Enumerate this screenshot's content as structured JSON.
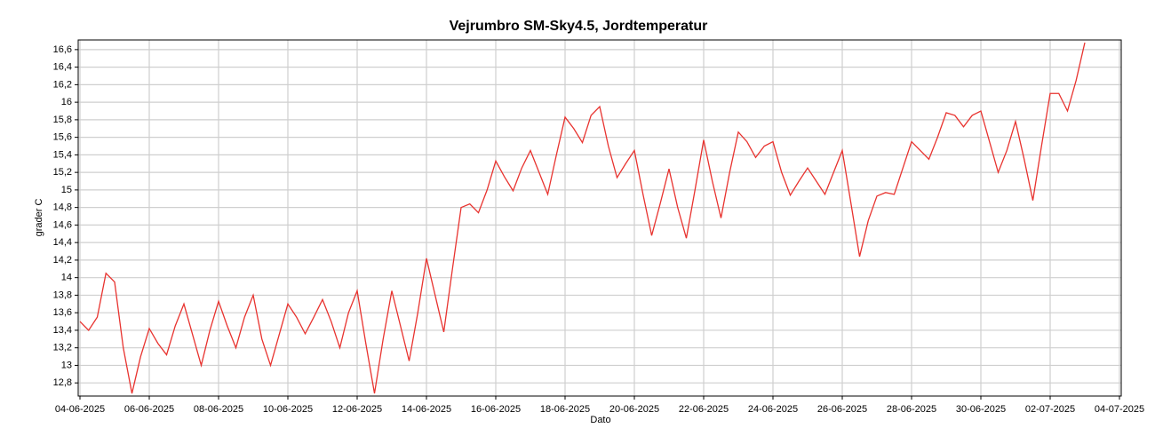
{
  "chart_data": {
    "type": "line",
    "title": "Vejrumbro SM-Sky4.5, Jordtemperatur",
    "x_label": "Dato",
    "y_label": "grader C",
    "x": [
      "2025-06-04T00:00",
      "2025-06-04T06:00",
      "2025-06-04T12:00",
      "2025-06-04T18:00",
      "2025-06-05T00:00",
      "2025-06-05T06:00",
      "2025-06-05T12:00",
      "2025-06-05T18:00",
      "2025-06-06T00:00",
      "2025-06-06T06:00",
      "2025-06-06T12:00",
      "2025-06-06T18:00",
      "2025-06-07T00:00",
      "2025-06-07T06:00",
      "2025-06-07T12:00",
      "2025-06-07T18:00",
      "2025-06-08T00:00",
      "2025-06-08T06:00",
      "2025-06-08T12:00",
      "2025-06-08T18:00",
      "2025-06-09T00:00",
      "2025-06-09T06:00",
      "2025-06-09T12:00",
      "2025-06-09T18:00",
      "2025-06-10T00:00",
      "2025-06-10T06:00",
      "2025-06-10T12:00",
      "2025-06-10T18:00",
      "2025-06-11T00:00",
      "2025-06-11T06:00",
      "2025-06-11T12:00",
      "2025-06-11T18:00",
      "2025-06-12T00:00",
      "2025-06-12T06:00",
      "2025-06-12T12:00",
      "2025-06-12T18:00",
      "2025-06-13T00:00",
      "2025-06-13T06:00",
      "2025-06-13T12:00",
      "2025-06-13T18:00",
      "2025-06-14T00:00",
      "2025-06-14T06:00",
      "2025-06-14T12:00",
      "2025-06-14T18:00",
      "2025-06-15T00:00",
      "2025-06-15T06:00",
      "2025-06-15T12:00",
      "2025-06-15T18:00",
      "2025-06-16T00:00",
      "2025-06-16T06:00",
      "2025-06-16T12:00",
      "2025-06-16T18:00",
      "2025-06-17T00:00",
      "2025-06-17T06:00",
      "2025-06-17T12:00",
      "2025-06-17T18:00",
      "2025-06-18T00:00",
      "2025-06-18T06:00",
      "2025-06-18T12:00",
      "2025-06-18T18:00",
      "2025-06-19T00:00",
      "2025-06-19T06:00",
      "2025-06-19T12:00",
      "2025-06-19T18:00",
      "2025-06-20T00:00",
      "2025-06-20T06:00",
      "2025-06-20T12:00",
      "2025-06-20T18:00",
      "2025-06-21T00:00",
      "2025-06-21T06:00",
      "2025-06-21T12:00",
      "2025-06-21T18:00",
      "2025-06-22T00:00",
      "2025-06-22T06:00",
      "2025-06-22T12:00",
      "2025-06-22T18:00",
      "2025-06-23T00:00",
      "2025-06-23T06:00",
      "2025-06-23T12:00",
      "2025-06-23T18:00",
      "2025-06-24T00:00",
      "2025-06-24T06:00",
      "2025-06-24T12:00",
      "2025-06-24T18:00",
      "2025-06-25T00:00",
      "2025-06-25T06:00",
      "2025-06-25T12:00",
      "2025-06-25T18:00",
      "2025-06-26T00:00",
      "2025-06-26T06:00",
      "2025-06-26T12:00",
      "2025-06-26T18:00",
      "2025-06-27T00:00",
      "2025-06-27T06:00",
      "2025-06-27T12:00",
      "2025-06-27T18:00",
      "2025-06-28T00:00",
      "2025-06-28T06:00",
      "2025-06-28T12:00",
      "2025-06-28T18:00",
      "2025-06-29T00:00",
      "2025-06-29T06:00",
      "2025-06-29T12:00",
      "2025-06-29T18:00",
      "2025-06-30T00:00",
      "2025-06-30T06:00",
      "2025-06-30T12:00",
      "2025-06-30T18:00",
      "2025-07-01T00:00",
      "2025-07-01T06:00",
      "2025-07-01T12:00",
      "2025-07-01T18:00",
      "2025-07-02T00:00",
      "2025-07-02T06:00",
      "2025-07-02T12:00",
      "2025-07-02T18:00",
      "2025-07-03T00:00"
    ],
    "series": [
      {
        "color": "#e8332f",
        "values": [
          13.5,
          13.4,
          13.55,
          14.05,
          13.95,
          13.2,
          12.68,
          13.1,
          13.42,
          13.25,
          13.12,
          13.45,
          13.7,
          13.35,
          13.0,
          13.4,
          13.73,
          13.45,
          13.2,
          13.55,
          13.8,
          13.3,
          13.0,
          13.35,
          13.7,
          13.55,
          13.36,
          13.55,
          13.75,
          13.5,
          13.2,
          13.6,
          13.85,
          13.25,
          12.68,
          13.3,
          13.85,
          13.45,
          13.05,
          13.6,
          14.22,
          13.8,
          13.38,
          14.1,
          14.8,
          14.84,
          14.74,
          15.0,
          15.33,
          15.15,
          14.99,
          15.25,
          15.45,
          15.2,
          14.95,
          15.4,
          15.83,
          15.7,
          15.54,
          15.85,
          15.95,
          15.5,
          15.14,
          15.3,
          15.45,
          14.95,
          14.48,
          14.85,
          15.24,
          14.8,
          14.45,
          15.0,
          15.57,
          15.1,
          14.68,
          15.2,
          15.66,
          15.55,
          15.37,
          15.5,
          15.55,
          15.2,
          14.94,
          15.1,
          15.25,
          15.1,
          14.95,
          15.2,
          15.45,
          14.85,
          14.24,
          14.65,
          14.93,
          14.97,
          14.95,
          15.25,
          15.55,
          15.45,
          15.35,
          15.6,
          15.88,
          15.85,
          15.72,
          15.85,
          15.9,
          15.55,
          15.2,
          15.45,
          15.78,
          15.35,
          14.88,
          15.5,
          16.1,
          16.1,
          15.9,
          16.25,
          16.68
        ]
      }
    ],
    "xlim": [
      "2025-06-04T00:00",
      "2025-07-04T00:00"
    ],
    "xticks": [
      {
        "value": "2025-06-04T00:00",
        "label": "04-06-2025"
      },
      {
        "value": "2025-06-06T00:00",
        "label": "06-06-2025"
      },
      {
        "value": "2025-06-08T00:00",
        "label": "08-06-2025"
      },
      {
        "value": "2025-06-10T00:00",
        "label": "10-06-2025"
      },
      {
        "value": "2025-06-12T00:00",
        "label": "12-06-2025"
      },
      {
        "value": "2025-06-14T00:00",
        "label": "14-06-2025"
      },
      {
        "value": "2025-06-16T00:00",
        "label": "16-06-2025"
      },
      {
        "value": "2025-06-18T00:00",
        "label": "18-06-2025"
      },
      {
        "value": "2025-06-20T00:00",
        "label": "20-06-2025"
      },
      {
        "value": "2025-06-22T00:00",
        "label": "22-06-2025"
      },
      {
        "value": "2025-06-24T00:00",
        "label": "24-06-2025"
      },
      {
        "value": "2025-06-26T00:00",
        "label": "26-06-2025"
      },
      {
        "value": "2025-06-28T00:00",
        "label": "28-06-2025"
      },
      {
        "value": "2025-06-30T00:00",
        "label": "30-06-2025"
      },
      {
        "value": "2025-07-02T00:00",
        "label": "02-07-2025"
      },
      {
        "value": "2025-07-04T00:00",
        "label": "04-07-2025"
      }
    ],
    "ylim": [
      12.65,
      16.71
    ],
    "yticks": [
      {
        "value": 12.8,
        "label": "12,8"
      },
      13,
      {
        "value": 13.2,
        "label": "13,2"
      },
      {
        "value": 13.4,
        "label": "13,4"
      },
      {
        "value": 13.6,
        "label": "13,6"
      },
      {
        "value": 13.8,
        "label": "13,8"
      },
      14,
      {
        "value": 14.2,
        "label": "14,2"
      },
      {
        "value": 14.4,
        "label": "14,4"
      },
      {
        "value": 14.6,
        "label": "14,6"
      },
      {
        "value": 14.8,
        "label": "14,8"
      },
      15,
      {
        "value": 15.2,
        "label": "15,2"
      },
      {
        "value": 15.4,
        "label": "15,4"
      },
      {
        "value": 15.6,
        "label": "15,6"
      },
      {
        "value": 15.8,
        "label": "15,8"
      },
      16,
      {
        "value": 16.2,
        "label": "16,2"
      },
      {
        "value": 16.4,
        "label": "16,4"
      },
      {
        "value": 16.6,
        "label": "16,6"
      }
    ],
    "grid": true
  }
}
